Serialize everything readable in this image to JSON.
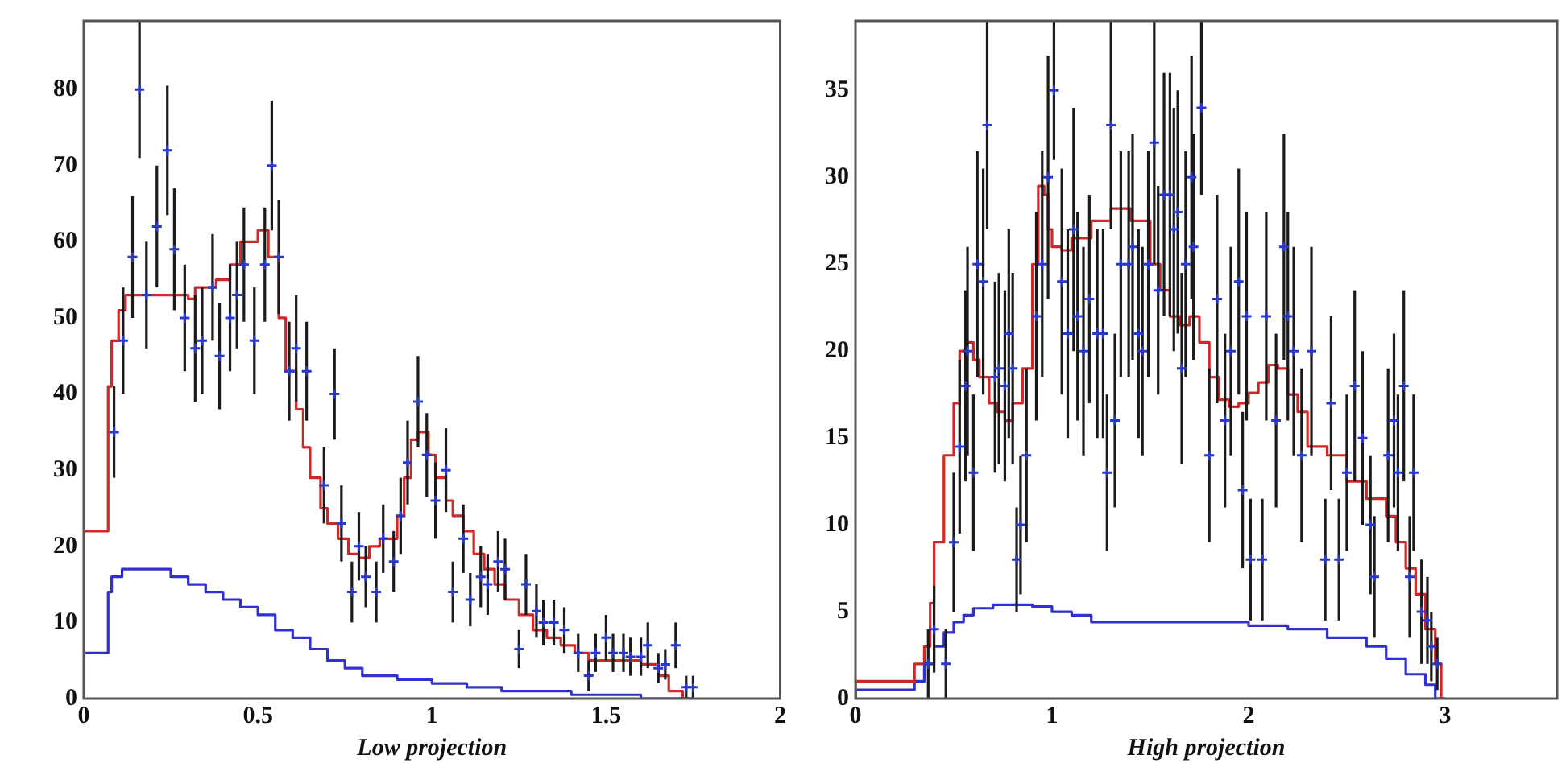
{
  "chart_data": [
    {
      "type": "scatter",
      "xlabel": "Low projection",
      "xlim": [
        0,
        2
      ],
      "ylim": [
        0,
        89
      ],
      "xticks": [
        0,
        0.5,
        1,
        1.5,
        2
      ],
      "yticks": [
        0,
        10,
        20,
        30,
        40,
        50,
        60,
        70,
        80
      ],
      "grid": false,
      "legend": false,
      "series": [
        {
          "type": "step",
          "color": "#d02828",
          "x": [
            0,
            0.07,
            0.08,
            0.1,
            0.12,
            0.15,
            0.3,
            0.32,
            0.38,
            0.42,
            0.45,
            0.5,
            0.53,
            0.56,
            0.58,
            0.61,
            0.63,
            0.65,
            0.68,
            0.7,
            0.73,
            0.76,
            0.79,
            0.82,
            0.85,
            0.9,
            0.92,
            0.94,
            0.96,
            0.99,
            1.01,
            1.04,
            1.06,
            1.09,
            1.12,
            1.15,
            1.18,
            1.21,
            1.25,
            1.29,
            1.33,
            1.37,
            1.41,
            1.45,
            1.5,
            1.6,
            1.65,
            1.68,
            1.72,
            1.75
          ],
          "values": [
            0,
            22,
            41,
            47,
            51,
            53,
            53,
            52.5,
            54,
            55,
            57,
            60,
            61.5,
            58,
            50,
            43,
            38,
            33,
            29,
            25,
            23,
            21,
            19,
            18.5,
            20,
            21,
            24,
            29,
            34,
            35,
            32,
            29,
            26,
            24,
            22,
            19,
            17,
            15,
            13,
            11,
            9,
            8,
            7,
            6,
            5,
            5,
            4.5,
            3,
            1,
            0
          ]
        },
        {
          "type": "step",
          "color": "#3030d0",
          "x": [
            0,
            0.07,
            0.08,
            0.11,
            0.13,
            0.25,
            0.3,
            0.35,
            0.4,
            0.45,
            0.5,
            0.55,
            0.6,
            0.65,
            0.7,
            0.75,
            0.8,
            0.9,
            1.0,
            1.1,
            1.2,
            1.4,
            1.6,
            1.75
          ],
          "values": [
            0,
            6,
            14,
            16,
            17,
            17,
            16,
            15,
            14,
            13,
            12,
            11,
            9,
            8,
            6.5,
            5,
            4,
            3,
            2.5,
            2,
            1.5,
            1,
            0.5,
            0
          ]
        },
        {
          "color": "#2838c8",
          "marker": "cross",
          "x": [
            0.087,
            0.113,
            0.14,
            0.16,
            0.18,
            0.21,
            0.24,
            0.26,
            0.29,
            0.32,
            0.34,
            0.37,
            0.39,
            0.42,
            0.44,
            0.46,
            0.49,
            0.52,
            0.54,
            0.56,
            0.59,
            0.61,
            0.64,
            0.69,
            0.72,
            0.74,
            0.77,
            0.79,
            0.81,
            0.84,
            0.86,
            0.89,
            0.91,
            0.93,
            0.96,
            0.985,
            1.01,
            1.04,
            1.06,
            1.09,
            1.11,
            1.14,
            1.16,
            1.19,
            1.21,
            1.25,
            1.27,
            1.3,
            1.32,
            1.35,
            1.38,
            1.42,
            1.45,
            1.47,
            1.5,
            1.52,
            1.55,
            1.57,
            1.6,
            1.62,
            1.65,
            1.67,
            1.7,
            1.73,
            1.75
          ],
          "values": [
            35,
            47,
            58,
            80,
            53,
            62,
            72,
            59,
            50,
            46,
            47,
            54,
            45,
            50,
            53,
            57,
            47,
            57,
            70,
            58,
            43,
            46,
            43,
            28,
            40,
            23,
            14,
            20,
            16,
            14,
            21,
            18,
            24,
            31,
            39,
            32,
            26,
            30,
            14,
            21,
            13,
            16,
            15,
            18,
            17,
            6.5,
            15,
            11.5,
            10,
            10,
            9,
            6,
            3,
            6,
            8,
            6,
            6,
            5.5,
            5.5,
            7,
            4,
            4.5,
            7,
            1.5,
            1.5
          ],
          "errors": [
            6,
            7,
            8,
            9,
            7,
            8,
            8.5,
            8,
            7,
            7,
            7,
            7,
            7,
            7,
            7,
            7.5,
            7,
            7.5,
            8.5,
            7.5,
            6.5,
            7,
            6.5,
            5,
            6,
            5,
            4,
            4.5,
            4,
            4,
            4.5,
            4,
            5,
            5.5,
            6,
            5.5,
            5,
            5.5,
            4,
            4.5,
            3.5,
            4,
            4,
            4,
            4,
            2.5,
            4,
            3.5,
            3,
            3,
            3,
            2.5,
            2,
            2.5,
            3,
            2.5,
            2.5,
            2.5,
            2.5,
            3,
            2,
            2,
            3,
            1.5,
            1.5
          ]
        }
      ]
    },
    {
      "type": "scatter",
      "xlabel": "High projection",
      "xlim": [
        0,
        3.57
      ],
      "ylim": [
        0,
        39
      ],
      "xticks": [
        0,
        1,
        2,
        3
      ],
      "yticks": [
        0,
        5,
        10,
        15,
        20,
        25,
        30,
        35
      ],
      "grid": false,
      "legend": false,
      "series": [
        {
          "type": "step",
          "color": "#d02828",
          "x": [
            0,
            0.28,
            0.3,
            0.35,
            0.38,
            0.4,
            0.45,
            0.5,
            0.53,
            0.56,
            0.6,
            0.63,
            0.68,
            0.72,
            0.76,
            0.8,
            0.85,
            0.9,
            0.93,
            0.96,
            0.98,
            1.0,
            1.05,
            1.1,
            1.2,
            1.3,
            1.4,
            1.5,
            1.55,
            1.6,
            1.65,
            1.7,
            1.75,
            1.8,
            1.85,
            1.9,
            1.95,
            2.0,
            2.05,
            2.1,
            2.15,
            2.2,
            2.25,
            2.3,
            2.4,
            2.5,
            2.6,
            2.7,
            2.75,
            2.8,
            2.85,
            2.9,
            2.95,
            2.98,
            3.0
          ],
          "values": [
            0,
            1,
            1,
            2,
            3,
            5.5,
            9,
            14,
            17,
            20,
            20.5,
            19.5,
            18.5,
            17,
            16.5,
            16,
            17,
            19,
            25,
            29.5,
            29,
            27,
            26,
            25.8,
            26.5,
            27.5,
            28.2,
            27.5,
            25,
            23.5,
            22,
            21.5,
            22,
            20.5,
            18.5,
            17.2,
            16.8,
            17,
            17.6,
            18.2,
            19.2,
            19,
            17.5,
            16.5,
            14.5,
            14,
            12.5,
            11.5,
            10.5,
            9,
            7.5,
            6,
            4,
            2,
            0
          ]
        },
        {
          "type": "step",
          "color": "#3030d0",
          "x": [
            0,
            0.3,
            0.35,
            0.4,
            0.45,
            0.5,
            0.55,
            0.6,
            0.7,
            0.8,
            0.9,
            1.0,
            1.1,
            1.2,
            1.35,
            1.5,
            2.0,
            2.2,
            2.4,
            2.6,
            2.7,
            2.8,
            2.9,
            2.95,
            3.0
          ],
          "values": [
            0,
            0.5,
            1,
            2,
            3,
            3.8,
            4.4,
            4.8,
            5.2,
            5.4,
            5.4,
            5.3,
            5,
            4.8,
            4.4,
            4.4,
            4.4,
            4.2,
            4,
            3.5,
            3,
            2.3,
            1.4,
            0.8,
            0
          ]
        },
        {
          "color": "#2838c8",
          "marker": "cross",
          "x": [
            0.37,
            0.4,
            0.46,
            0.5,
            0.53,
            0.56,
            0.57,
            0.6,
            0.62,
            0.65,
            0.67,
            0.71,
            0.73,
            0.76,
            0.78,
            0.8,
            0.82,
            0.84,
            0.87,
            0.92,
            0.95,
            0.98,
            1.01,
            1.05,
            1.08,
            1.11,
            1.13,
            1.16,
            1.19,
            1.23,
            1.26,
            1.28,
            1.3,
            1.32,
            1.35,
            1.39,
            1.41,
            1.44,
            1.46,
            1.49,
            1.52,
            1.54,
            1.57,
            1.6,
            1.62,
            1.64,
            1.66,
            1.68,
            1.71,
            1.72,
            1.76,
            1.8,
            1.84,
            1.88,
            1.91,
            1.95,
            1.97,
            1.99,
            2.01,
            2.07,
            2.09,
            2.14,
            2.18,
            2.2,
            2.23,
            2.27,
            2.32,
            2.39,
            2.42,
            2.46,
            2.5,
            2.54,
            2.58,
            2.62,
            2.64,
            2.71,
            2.74,
            2.76,
            2.79,
            2.82,
            2.84,
            2.88,
            2.91,
            2.93,
            2.96
          ],
          "values": [
            2,
            4,
            2,
            9,
            14.5,
            18,
            20,
            13,
            25,
            24,
            33,
            18.5,
            19,
            18,
            21,
            19,
            8,
            10,
            14,
            22,
            25,
            30,
            35,
            24,
            21,
            27,
            22,
            20,
            23,
            21,
            21,
            13,
            33,
            16,
            25,
            25,
            26,
            21,
            20,
            25,
            32,
            23.5,
            29,
            29,
            27,
            28,
            19,
            25,
            30,
            26,
            34,
            14,
            23,
            16,
            20,
            24,
            12,
            22,
            8,
            8,
            22,
            16,
            26,
            22,
            20,
            14,
            20,
            8,
            17,
            8,
            13,
            18,
            15,
            10,
            7,
            14,
            16,
            13,
            18,
            7,
            13,
            5,
            4.5,
            3,
            2
          ],
          "errors": [
            2,
            2.5,
            2,
            4,
            5,
            5.5,
            6,
            4.5,
            6.5,
            6.5,
            6,
            5.5,
            5.5,
            5.5,
            6,
            5.5,
            3,
            4,
            5,
            6,
            6.5,
            7,
            4,
            6.5,
            6,
            7,
            6,
            6,
            6,
            6,
            6,
            4.5,
            6,
            5,
            6.5,
            6.5,
            6.5,
            6,
            6,
            6.5,
            7,
            6,
            7,
            7,
            7,
            7,
            5.5,
            6.5,
            7,
            6.5,
            5,
            5,
            6,
            5,
            6,
            6.5,
            4.5,
            6,
            3.5,
            3.5,
            6,
            5,
            6.5,
            6,
            6,
            5,
            6,
            3.5,
            5,
            3.5,
            4.5,
            5.5,
            5,
            4,
            3.5,
            5,
            5,
            4.5,
            5.5,
            3.5,
            4.5,
            3,
            2.5,
            2,
            1.5
          ]
        }
      ]
    }
  ]
}
